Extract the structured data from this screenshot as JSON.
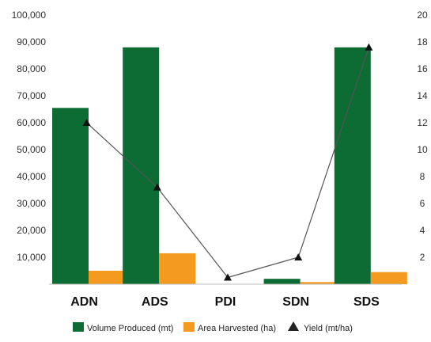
{
  "chart_data": {
    "type": "bar",
    "categories": [
      "ADN",
      "ADS",
      "PDI",
      "SDN",
      "SDS"
    ],
    "series": [
      {
        "name": "Volume Produced (mt)",
        "kind": "bar",
        "axis": "left",
        "color": "#0d6b34",
        "values": [
          65500,
          88000,
          0,
          2000,
          88000
        ]
      },
      {
        "name": "Area Harvested (ha)",
        "kind": "bar",
        "axis": "left",
        "color": "#f39a1f",
        "values": [
          5000,
          11500,
          0,
          800,
          4500
        ]
      },
      {
        "name": "Yield (mt/ha)",
        "kind": "line",
        "marker": "triangle",
        "axis": "right",
        "color": "#555555",
        "values": [
          12,
          7.2,
          0.5,
          2,
          17.6
        ]
      }
    ],
    "y_left": {
      "ylim": [
        0,
        100000
      ],
      "ticks": [
        "100,000",
        "90,000",
        "80,000",
        "70,000",
        "60,000",
        "50,000",
        "40,000",
        "30,000",
        "20,000",
        "10,000"
      ]
    },
    "y_right": {
      "ylim": [
        0,
        20
      ],
      "ticks": [
        "20",
        "18",
        "16",
        "14",
        "12",
        "10",
        "8",
        "6",
        "4",
        "2"
      ]
    },
    "grid": false,
    "legend_position": "bottom"
  }
}
